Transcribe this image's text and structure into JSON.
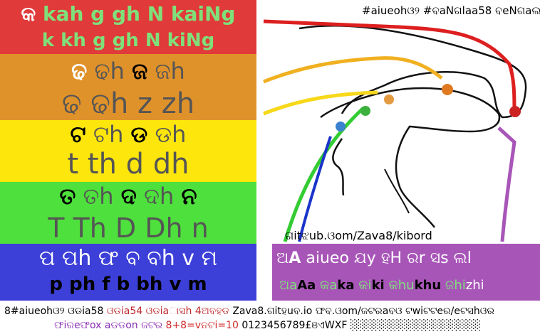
{
  "consonant_rows": {
    "velar": {
      "script_first": "କ",
      "script_rest": "kah g gh N kaiNg",
      "roman": "k kh g gh N kiNg",
      "color": "#e03a3a"
    },
    "palatal": {
      "script": [
        "ଢ",
        "ଢh",
        "ଜ",
        "ଜh"
      ],
      "roman": "ଢ ଢh z zh",
      "color": "#e0922a"
    },
    "retroflex": {
      "script": [
        "ଟ",
        "ଟh",
        "ଡ",
        "ଡh"
      ],
      "roman": "t th d dh",
      "color": "#fde60c"
    },
    "dental": {
      "script": [
        "ତ",
        "ତh",
        "ଦ",
        "ଦh",
        "ନ"
      ],
      "roman": "T Th D Dh n",
      "color": "#4ee03c"
    },
    "labial": {
      "script": "ପ ପh ଫ ବ ବh v ମ",
      "roman": "p ph f b bh v m",
      "color": "#3c3fd8"
    }
  },
  "header_tag": "#aiueohଓ୨ #ବaNଗlaa58 ବeNଗaଲi",
  "repo_label": "ଗitଝub.ଓom/Zava8/kibord",
  "vowel_panel": {
    "line1_prefix": "ଅ",
    "line1_bold": "A",
    "line1_rest": "aiueo ଯy ହH ରr ସs ଲl",
    "line2": [
      {
        "script": "ଅa",
        "roman": "Aa"
      },
      {
        "script": "କa",
        "roman": "ka"
      },
      {
        "script": "କi",
        "roman": "ki"
      },
      {
        "script": "କhu",
        "roman": "khu"
      },
      {
        "script": "ଜhi",
        "roman": "zhi"
      }
    ],
    "color": "#a855b8"
  },
  "footer": {
    "line1_a": "8#aiueohଓ୨ ଓଡia58",
    "line1_b": "ଓଡia54 ଓଡiaାସh 4ଅବହଡ",
    "line1_c": "Zava8.ଗitହuବ.io ଫବ.ଓom/ଜଟରaବଓ ଟwiଟଟeର/eଟସhଓର",
    "line2_a": "ଫiରeଫox aଡଡon ଜଟର",
    "line2_b": "8+8=vନଟi=10",
    "line2_c": "0123456789£ଞଏWXF",
    "line2_d": "░░░░░░░░░░░░░░░░░"
  },
  "diagram_icons": [
    "mouth-cross-section"
  ]
}
